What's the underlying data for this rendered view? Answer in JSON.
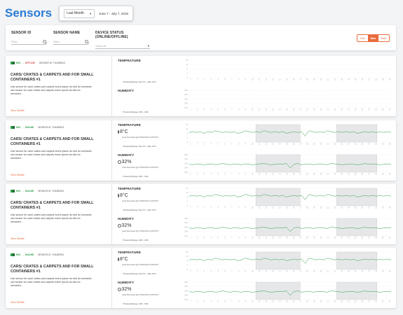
{
  "header": {
    "title": "Sensors",
    "period": "Last Month",
    "date_range": "June 7 - July 7, 2019"
  },
  "filters": {
    "sensor_id": {
      "label": "SENSOR ID",
      "placeholder": "Filter"
    },
    "sensor_name": {
      "label": "SENSOR NAME",
      "placeholder": "Filter"
    },
    "device_status": {
      "label": "DEVICE STATUS (ONLINE/OFFLINE)",
      "value": "Show all"
    },
    "segments": [
      "Min",
      "Max",
      "Both"
    ],
    "active_segment": "Max"
  },
  "sensors": [
    {
      "battery": "80%",
      "status": "OFFLINE",
      "sensor_id_text": "SENSOR ID: TH4489913",
      "name": "CARS/ CRATES & CARPETS AND FOR SMALL CONTAINERS #1",
      "description": "Use sensor for cars/ crates and carpets lorem ipsum do dlot do loemsdm use sensor for cars/ crates and carpets lorem ipsum do dlot do loemsdm...",
      "view_details": "View Details",
      "temperature": {
        "label": "TEMPRATURE",
        "value": "",
        "last_recorded": "",
        "threshold": "Threshold Range: Min 0°C - Max 10°C"
      },
      "humidity": {
        "label": "HUMIDITY",
        "value": "",
        "last_recorded": "",
        "threshold": "Threshold Range: 20% - 40%"
      },
      "has_data": false
    },
    {
      "battery": "80%",
      "status": "ONLINE",
      "sensor_id_text": "SENSOR ID: TH4489913",
      "name": "CARS/ CRATES & CARPETS AND FOR SMALL CONTAINERS #1",
      "description": "Use sensor for cars/ crates and carpets lorem ipsum do dlot do loemsdm use sensor for cars/ crates and carpets lorem ipsum do dlot do loemsdm...",
      "view_details": "View Details",
      "temperature": {
        "label": "TEMPRATURE",
        "value": "8°C",
        "last_recorded": "(Last Recorded @ 07/06/2019 13:28 PST)",
        "threshold": "Threshold Range: Min 0°C - Max 10°C"
      },
      "humidity": {
        "label": "HUMIDITY",
        "value": "32%",
        "last_recorded": "(Last Recorded @ 07/06/2019 13:28 PST)",
        "threshold": "Threshold Range: 20% - 40%"
      },
      "has_data": true
    },
    {
      "battery": "80%",
      "status": "ONLINE",
      "sensor_id_text": "SENSOR ID: TH4489913",
      "name": "CARS/ CRATES & CARPETS AND FOR SMALL CONTAINERS #1",
      "description": "Use sensor for cars/ crates and carpets lorem ipsum do dlot do loemsdm use sensor for cars/ crates and carpets lorem ipsum do dlot do loemsdm...",
      "view_details": "View Details",
      "temperature": {
        "label": "TEMPRATURE",
        "value": "8°C",
        "last_recorded": "(Last Recorded @ 07/06/2019 13:28 PST)",
        "threshold": "Threshold Range: Min 0°C - Max 10°C"
      },
      "humidity": {
        "label": "HUMIDITY",
        "value": "32%",
        "last_recorded": "(Last Recorded @ 07/06/2019 13:28 PST)",
        "threshold": "Threshold Range: 20% - 40%"
      },
      "has_data": true
    },
    {
      "battery": "80%",
      "status": "ONLINE",
      "sensor_id_text": "SENSOR ID: TH4489913",
      "name": "CARS/ CRATES & CARPETS AND FOR SMALL CONTAINERS #1",
      "description": "Use sensor for cars/ crates and carpets lorem ipsum do dlot do loemsdm use sensor for cars/ crates and carpets lorem ipsum do dlot do loemsdm...",
      "view_details": "View Details",
      "temperature": {
        "label": "TEMPRATURE",
        "value": "8°C",
        "last_recorded": "(Last Recorded @ 07/06/2019 13:28 PST)",
        "threshold": "Threshold Range: Min 0°C - Max 10°C"
      },
      "humidity": {
        "label": "HUMIDITY",
        "value": "32%",
        "last_recorded": "(Last Recorded @ 07/06/2019 13:28 PST)",
        "threshold": "Threshold Range: 20% - 40%"
      },
      "has_data": true
    }
  ],
  "chart_data": {
    "type": "line",
    "temperature_yticks": [
      "15",
      "10",
      "5",
      "0",
      "-5"
    ],
    "humidity_yticks": [
      "50%",
      "40%",
      "30%",
      "20%",
      "10%"
    ],
    "temperature_ylim": [
      -5,
      15
    ],
    "humidity_ylim": [
      10,
      50
    ],
    "temperature_series": [
      6,
      7,
      6,
      7,
      5,
      7,
      6,
      8,
      7,
      6,
      7,
      6,
      7,
      5,
      6,
      8,
      7,
      6,
      7,
      6,
      8,
      7,
      6,
      7,
      6,
      7,
      5,
      6,
      7,
      6,
      7,
      2,
      8,
      7,
      6,
      7,
      6,
      8,
      7,
      6,
      7,
      6,
      7,
      6,
      7,
      5,
      6,
      7,
      6,
      7,
      6,
      7,
      6,
      7,
      6
    ],
    "humidity_series": [
      28,
      27,
      29,
      28,
      27,
      28,
      29,
      27,
      28,
      30,
      28,
      27,
      29,
      28,
      27,
      29,
      28,
      27,
      28,
      29,
      30,
      28,
      27,
      28,
      29,
      28,
      30,
      20,
      28,
      30,
      27,
      28,
      29,
      27,
      28,
      29,
      28,
      27,
      30,
      29,
      28,
      27,
      28,
      29,
      28,
      27,
      28,
      30,
      28,
      29,
      28,
      27,
      28,
      29,
      28
    ],
    "threshold_bands": [
      [
        0.33,
        0.55
      ],
      [
        0.73,
        0.93
      ]
    ],
    "colors": {
      "line": "#2e9e4a",
      "band": "#e6e7e9",
      "grid": "#dcdcdc"
    }
  }
}
